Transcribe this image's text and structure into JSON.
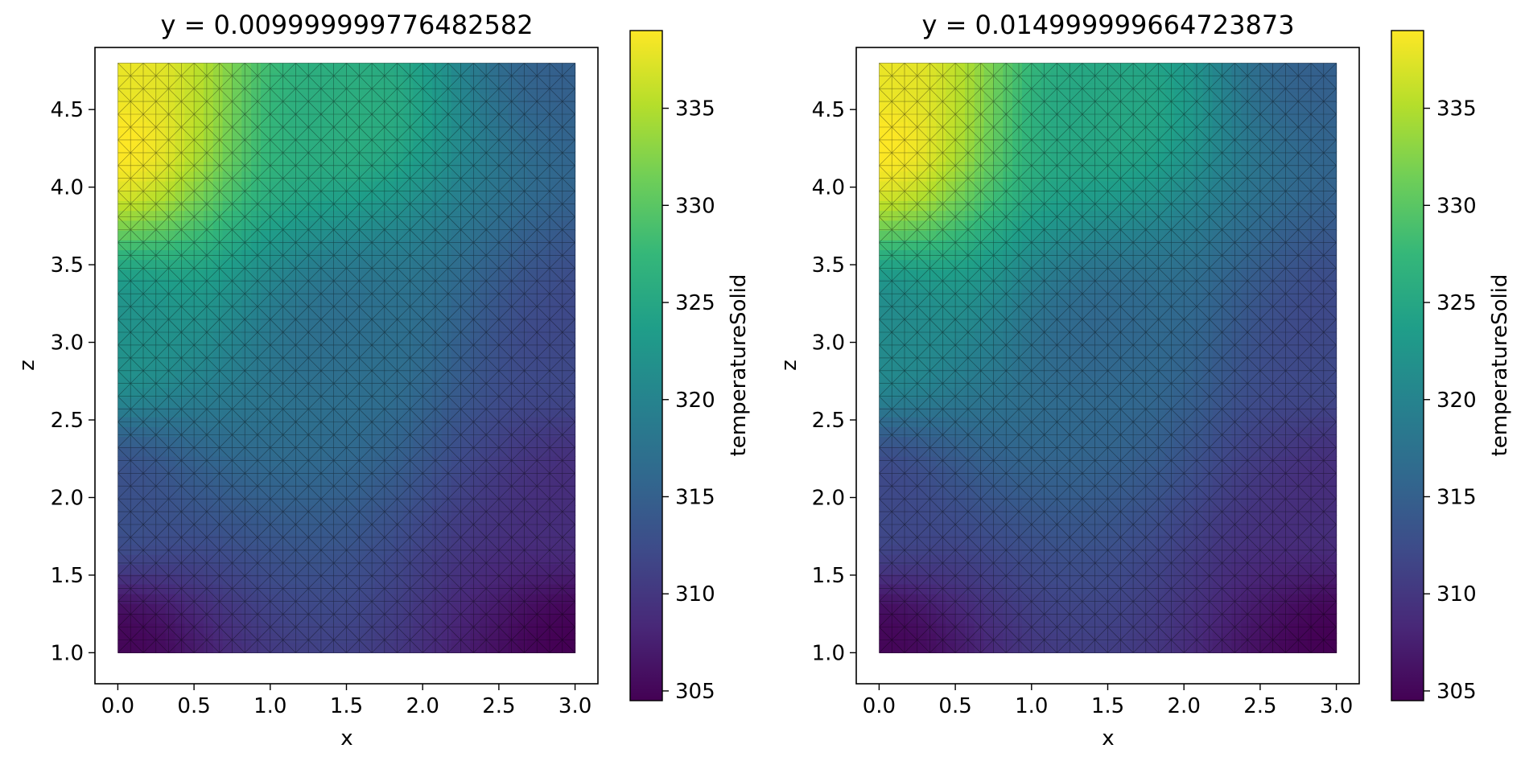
{
  "chart_data": [
    {
      "type": "heatmap",
      "title": "y = 0.009999999776482582",
      "xlabel": "x",
      "ylabel": "z",
      "xlim": [
        -0.15,
        3.15
      ],
      "ylim": [
        0.8,
        4.9
      ],
      "domain": {
        "x": [
          0.0,
          3.0
        ],
        "z": [
          1.0,
          4.8
        ]
      },
      "xticks": [
        "0.0",
        "0.5",
        "1.0",
        "1.5",
        "2.0",
        "2.5",
        "3.0"
      ],
      "xtick_values": [
        0.0,
        0.5,
        1.0,
        1.5,
        2.0,
        2.5,
        3.0
      ],
      "yticks": [
        "1.0",
        "1.5",
        "2.0",
        "2.5",
        "3.0",
        "3.5",
        "4.0",
        "4.5"
      ],
      "ytick_values": [
        1.0,
        1.5,
        2.0,
        2.5,
        3.0,
        3.5,
        4.0,
        4.5
      ],
      "colorbar": {
        "label": "temperatureSolid",
        "range": [
          304.5,
          339.0
        ],
        "ticks": [
          "305",
          "310",
          "315",
          "320",
          "325",
          "330",
          "335"
        ],
        "tick_values": [
          305,
          310,
          315,
          320,
          325,
          330,
          335
        ]
      },
      "field": {
        "min": 304.5,
        "max": 339.0,
        "hot_spot": {
          "x": 0.0,
          "z": 4.3
        },
        "samples": [
          {
            "x": 0.0,
            "z": 4.8,
            "value": 338
          },
          {
            "x": 0.0,
            "z": 4.3,
            "value": 339
          },
          {
            "x": 1.5,
            "z": 4.5,
            "value": 326
          },
          {
            "x": 3.0,
            "z": 4.8,
            "value": 315
          },
          {
            "x": 0.0,
            "z": 3.0,
            "value": 322
          },
          {
            "x": 1.5,
            "z": 3.0,
            "value": 317
          },
          {
            "x": 3.0,
            "z": 3.0,
            "value": 312
          },
          {
            "x": 0.0,
            "z": 2.0,
            "value": 313
          },
          {
            "x": 3.0,
            "z": 2.0,
            "value": 309
          },
          {
            "x": 0.0,
            "z": 1.0,
            "value": 305
          },
          {
            "x": 3.0,
            "z": 1.0,
            "value": 304.5
          }
        ]
      },
      "mesh": "triangular",
      "grid": false
    },
    {
      "type": "heatmap",
      "title": "y = 0.014999999664723873",
      "xlabel": "x",
      "ylabel": "z",
      "xlim": [
        -0.15,
        3.15
      ],
      "ylim": [
        0.8,
        4.9
      ],
      "domain": {
        "x": [
          0.0,
          3.0
        ],
        "z": [
          1.0,
          4.8
        ]
      },
      "xticks": [
        "0.0",
        "0.5",
        "1.0",
        "1.5",
        "2.0",
        "2.5",
        "3.0"
      ],
      "xtick_values": [
        0.0,
        0.5,
        1.0,
        1.5,
        2.0,
        2.5,
        3.0
      ],
      "yticks": [
        "1.0",
        "1.5",
        "2.0",
        "2.5",
        "3.0",
        "3.5",
        "4.0",
        "4.5"
      ],
      "ytick_values": [
        1.0,
        1.5,
        2.0,
        2.5,
        3.0,
        3.5,
        4.0,
        4.5
      ],
      "colorbar": {
        "label": "temperatureSolid",
        "range": [
          304.5,
          339.0
        ],
        "ticks": [
          "305",
          "310",
          "315",
          "320",
          "325",
          "330",
          "335"
        ],
        "tick_values": [
          305,
          310,
          315,
          320,
          325,
          330,
          335
        ]
      },
      "field": {
        "min": 304.5,
        "max": 339.0,
        "hot_spot": {
          "x": 0.0,
          "z": 4.3
        },
        "samples": [
          {
            "x": 0.0,
            "z": 4.8,
            "value": 338
          },
          {
            "x": 0.0,
            "z": 4.3,
            "value": 339
          },
          {
            "x": 1.5,
            "z": 4.5,
            "value": 325
          },
          {
            "x": 3.0,
            "z": 4.8,
            "value": 315
          },
          {
            "x": 0.0,
            "z": 3.0,
            "value": 321
          },
          {
            "x": 1.5,
            "z": 3.0,
            "value": 316
          },
          {
            "x": 3.0,
            "z": 3.0,
            "value": 312
          },
          {
            "x": 0.0,
            "z": 2.0,
            "value": 312
          },
          {
            "x": 3.0,
            "z": 2.0,
            "value": 309
          },
          {
            "x": 0.0,
            "z": 1.0,
            "value": 305
          },
          {
            "x": 3.0,
            "z": 1.0,
            "value": 304.5
          }
        ]
      },
      "mesh": "triangular",
      "grid": false
    }
  ],
  "colormap": {
    "name": "viridis",
    "stops": [
      "#440154",
      "#482878",
      "#3e4a89",
      "#31688e",
      "#26828e",
      "#1f9e89",
      "#35b779",
      "#6ece58",
      "#b5de2b",
      "#fde725"
    ]
  }
}
